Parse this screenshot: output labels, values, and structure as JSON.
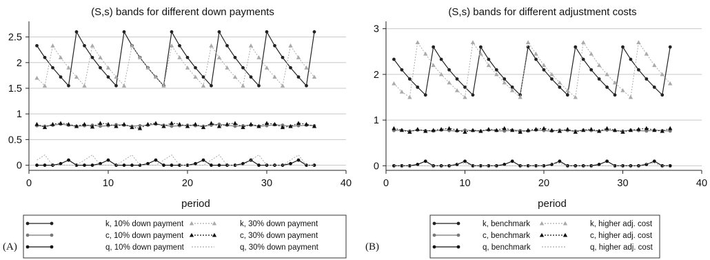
{
  "chart_data": [
    {
      "type": "line",
      "panel_label": "(A)",
      "title": "(S,s) bands for different down payments",
      "xlabel": "period",
      "ylabel": "",
      "xlim": [
        0,
        40
      ],
      "ylim": [
        -0.1,
        2.75
      ],
      "xticks": [
        0,
        10,
        20,
        30,
        40
      ],
      "yticks": [
        0,
        0.5,
        1,
        1.5,
        2,
        2.5
      ],
      "ytick_labels": [
        "0",
        "0.5",
        "1",
        "1.5",
        "2",
        "2.5"
      ],
      "grid": "horizontal",
      "legend_position": "bottom",
      "series": [
        {
          "name": "k, 10% down payment",
          "color": "#222222",
          "dash": "solid",
          "marker": "circle",
          "x": [
            1,
            2,
            3,
            4,
            5,
            6,
            7,
            8,
            9,
            10,
            11,
            12,
            13,
            14,
            15,
            16,
            17,
            18,
            19,
            20,
            21,
            22,
            23,
            24,
            25,
            26,
            27,
            28,
            29,
            30,
            31,
            32,
            33,
            34,
            35,
            36
          ],
          "y": [
            2.33,
            2.1,
            1.9,
            1.72,
            1.55,
            2.6,
            2.33,
            2.1,
            1.9,
            1.72,
            1.55,
            2.6,
            2.33,
            2.1,
            1.9,
            1.72,
            1.55,
            2.6,
            2.33,
            2.1,
            1.9,
            1.72,
            1.55,
            2.6,
            2.33,
            2.1,
            1.9,
            1.72,
            1.55,
            2.6,
            2.33,
            2.1,
            1.9,
            1.72,
            1.55,
            2.6
          ]
        },
        {
          "name": "c, 10% down payment",
          "color": "#777777",
          "dash": "solid",
          "marker": "circle",
          "x": [
            1,
            2,
            3,
            4,
            5,
            6,
            7,
            8,
            9,
            10,
            11,
            12,
            13,
            14,
            15,
            16,
            17,
            18,
            19,
            20,
            21,
            22,
            23,
            24,
            25,
            26,
            27,
            28,
            29,
            30,
            31,
            32,
            33,
            34,
            35,
            36
          ],
          "y": [
            0.77,
            0.76,
            0.78,
            0.8,
            0.78,
            0.76,
            0.77,
            0.78,
            0.76,
            0.77,
            0.79,
            0.78,
            0.76,
            0.77,
            0.78,
            0.8,
            0.78,
            0.76,
            0.77,
            0.78,
            0.77,
            0.76,
            0.78,
            0.8,
            0.78,
            0.76,
            0.77,
            0.78,
            0.76,
            0.77,
            0.79,
            0.78,
            0.76,
            0.77,
            0.78,
            0.77
          ]
        },
        {
          "name": "q, 10% down payment",
          "color": "#111111",
          "dash": "solid",
          "marker": "circle",
          "x": [
            1,
            2,
            3,
            4,
            5,
            6,
            7,
            8,
            9,
            10,
            11,
            12,
            13,
            14,
            15,
            16,
            17,
            18,
            19,
            20,
            21,
            22,
            23,
            24,
            25,
            26,
            27,
            28,
            29,
            30,
            31,
            32,
            33,
            34,
            35,
            36
          ],
          "y": [
            0,
            0,
            0,
            0.03,
            0.1,
            0,
            0,
            0,
            0.03,
            0.1,
            0,
            0,
            0,
            0,
            0.03,
            0.1,
            0,
            0,
            0,
            0,
            0.03,
            0.1,
            0,
            0,
            0,
            0,
            0.03,
            0.1,
            0,
            0,
            0,
            0,
            0.03,
            0.1,
            0,
            0
          ]
        },
        {
          "name": "k, 30% down payment",
          "color": "#aaaaaa",
          "dash": "dotted",
          "marker": "triangle",
          "x": [
            1,
            2,
            3,
            4,
            5,
            6,
            7,
            8,
            9,
            10,
            11,
            12,
            13,
            14,
            15,
            16,
            17,
            18,
            19,
            20,
            21,
            22,
            23,
            24,
            25,
            26,
            27,
            28,
            29,
            30,
            31,
            32,
            33,
            34,
            35,
            36
          ],
          "y": [
            1.7,
            1.55,
            2.33,
            2.1,
            1.9,
            1.72,
            1.55,
            2.33,
            2.1,
            1.9,
            1.72,
            1.55,
            2.33,
            2.1,
            1.9,
            1.72,
            1.55,
            2.33,
            2.1,
            1.9,
            1.72,
            1.55,
            2.33,
            2.1,
            1.9,
            1.72,
            1.55,
            2.33,
            2.1,
            1.9,
            1.72,
            1.55,
            2.33,
            2.1,
            1.9,
            1.72
          ]
        },
        {
          "name": "c, 30% down payment",
          "color": "#111111",
          "dash": "dotted",
          "marker": "triangle",
          "x": [
            1,
            2,
            3,
            4,
            5,
            6,
            7,
            8,
            9,
            10,
            11,
            12,
            13,
            14,
            15,
            16,
            17,
            18,
            19,
            20,
            21,
            22,
            23,
            24,
            25,
            26,
            27,
            28,
            29,
            30,
            31,
            32,
            33,
            34,
            35,
            36
          ],
          "y": [
            0.8,
            0.74,
            0.8,
            0.82,
            0.8,
            0.76,
            0.8,
            0.75,
            0.82,
            0.8,
            0.76,
            0.8,
            0.74,
            0.72,
            0.8,
            0.82,
            0.76,
            0.82,
            0.8,
            0.76,
            0.8,
            0.74,
            0.82,
            0.76,
            0.8,
            0.82,
            0.74,
            0.8,
            0.76,
            0.82,
            0.8,
            0.74,
            0.76,
            0.82,
            0.8,
            0.76
          ]
        },
        {
          "name": "q, 30% down payment",
          "color": "#aaaaaa",
          "dash": "dotted",
          "marker": "none",
          "x": [
            1,
            2,
            3,
            4,
            5,
            6,
            7,
            8,
            9,
            10,
            11,
            12,
            13,
            14,
            15,
            16,
            17,
            18,
            19,
            20,
            21,
            22,
            23,
            24,
            25,
            26,
            27,
            28,
            29,
            30,
            31,
            32,
            33,
            34,
            35,
            36
          ],
          "y": [
            0.1,
            0.2,
            0,
            0,
            0,
            0,
            0.1,
            0.2,
            0,
            0,
            0,
            0.1,
            0.2,
            0,
            0,
            0,
            0.1,
            0.2,
            0,
            0,
            0,
            0,
            0.1,
            0.2,
            0,
            0,
            0,
            0.1,
            0.2,
            0,
            0,
            0,
            0.1,
            0.2,
            0,
            0
          ]
        }
      ]
    },
    {
      "type": "line",
      "panel_label": "(B)",
      "title": "(S,s) bands for different adjustment costs",
      "xlabel": "period",
      "ylabel": "",
      "xlim": [
        0,
        40
      ],
      "ylim": [
        -0.1,
        3.1
      ],
      "xticks": [
        0,
        10,
        20,
        30,
        40
      ],
      "yticks": [
        0,
        1,
        2,
        3
      ],
      "ytick_labels": [
        "0",
        "1",
        "2",
        "3"
      ],
      "grid": "horizontal",
      "legend_position": "bottom",
      "series": [
        {
          "name": "k, benchmark",
          "color": "#222222",
          "dash": "solid",
          "marker": "circle",
          "x": [
            1,
            2,
            3,
            4,
            5,
            6,
            7,
            8,
            9,
            10,
            11,
            12,
            13,
            14,
            15,
            16,
            17,
            18,
            19,
            20,
            21,
            22,
            23,
            24,
            25,
            26,
            27,
            28,
            29,
            30,
            31,
            32,
            33,
            34,
            35,
            36
          ],
          "y": [
            2.33,
            2.1,
            1.9,
            1.72,
            1.55,
            2.6,
            2.33,
            2.1,
            1.9,
            1.72,
            1.55,
            2.6,
            2.33,
            2.1,
            1.9,
            1.72,
            1.55,
            2.6,
            2.33,
            2.1,
            1.9,
            1.72,
            1.55,
            2.6,
            2.33,
            2.1,
            1.9,
            1.72,
            1.55,
            2.6,
            2.33,
            2.1,
            1.9,
            1.72,
            1.55,
            2.6
          ]
        },
        {
          "name": "c, benchmark",
          "color": "#777777",
          "dash": "solid",
          "marker": "circle",
          "x": [
            1,
            2,
            3,
            4,
            5,
            6,
            7,
            8,
            9,
            10,
            11,
            12,
            13,
            14,
            15,
            16,
            17,
            18,
            19,
            20,
            21,
            22,
            23,
            24,
            25,
            26,
            27,
            28,
            29,
            30,
            31,
            32,
            33,
            34,
            35,
            36
          ],
          "y": [
            0.77,
            0.78,
            0.76,
            0.78,
            0.77,
            0.76,
            0.78,
            0.77,
            0.76,
            0.78,
            0.77,
            0.76,
            0.78,
            0.77,
            0.76,
            0.78,
            0.77,
            0.76,
            0.78,
            0.77,
            0.76,
            0.78,
            0.77,
            0.76,
            0.78,
            0.77,
            0.76,
            0.78,
            0.77,
            0.76,
            0.78,
            0.77,
            0.76,
            0.78,
            0.77,
            0.76
          ]
        },
        {
          "name": "q, benchmark",
          "color": "#111111",
          "dash": "solid",
          "marker": "circle",
          "x": [
            1,
            2,
            3,
            4,
            5,
            6,
            7,
            8,
            9,
            10,
            11,
            12,
            13,
            14,
            15,
            16,
            17,
            18,
            19,
            20,
            21,
            22,
            23,
            24,
            25,
            26,
            27,
            28,
            29,
            30,
            31,
            32,
            33,
            34,
            35,
            36
          ],
          "y": [
            0,
            0,
            0,
            0.03,
            0.1,
            0,
            0,
            0,
            0.03,
            0.1,
            0,
            0,
            0,
            0,
            0.03,
            0.1,
            0,
            0,
            0,
            0,
            0.03,
            0.1,
            0,
            0,
            0,
            0,
            0.03,
            0.1,
            0,
            0,
            0,
            0,
            0.03,
            0.1,
            0,
            0
          ]
        },
        {
          "name": "k, higher adj. cost",
          "color": "#aaaaaa",
          "dash": "dotted",
          "marker": "triangle",
          "x": [
            1,
            2,
            3,
            4,
            5,
            6,
            7,
            8,
            9,
            10,
            11,
            12,
            13,
            14,
            15,
            16,
            17,
            18,
            19,
            20,
            21,
            22,
            23,
            24,
            25,
            26,
            27,
            28,
            29,
            30,
            31,
            32,
            33,
            34,
            35,
            36
          ],
          "y": [
            1.8,
            1.62,
            1.5,
            2.7,
            2.45,
            2.2,
            2.0,
            1.82,
            1.65,
            1.5,
            2.7,
            2.45,
            2.2,
            2.0,
            1.82,
            1.65,
            1.5,
            2.7,
            2.45,
            2.2,
            2.0,
            1.82,
            1.65,
            1.5,
            2.7,
            2.45,
            2.2,
            2.0,
            1.82,
            1.65,
            1.5,
            2.7,
            2.45,
            2.2,
            2.0,
            1.8
          ]
        },
        {
          "name": "c, higher adj. cost",
          "color": "#111111",
          "dash": "dotted",
          "marker": "triangle",
          "x": [
            1,
            2,
            3,
            4,
            5,
            6,
            7,
            8,
            9,
            10,
            11,
            12,
            13,
            14,
            15,
            16,
            17,
            18,
            19,
            20,
            21,
            22,
            23,
            24,
            25,
            26,
            27,
            28,
            29,
            30,
            31,
            32,
            33,
            34,
            35,
            36
          ],
          "y": [
            0.82,
            0.78,
            0.74,
            0.8,
            0.76,
            0.78,
            0.8,
            0.82,
            0.78,
            0.74,
            0.78,
            0.76,
            0.8,
            0.78,
            0.82,
            0.78,
            0.74,
            0.78,
            0.8,
            0.82,
            0.78,
            0.76,
            0.8,
            0.74,
            0.78,
            0.8,
            0.76,
            0.82,
            0.78,
            0.74,
            0.78,
            0.8,
            0.82,
            0.78,
            0.76,
            0.82
          ]
        },
        {
          "name": "q,  higher adj. cost",
          "color": "#aaaaaa",
          "dash": "dotted",
          "marker": "none",
          "x": [
            1,
            2,
            3,
            4,
            5,
            6,
            7,
            8,
            9,
            10,
            11,
            12,
            13,
            14,
            15,
            16,
            17,
            18,
            19,
            20,
            21,
            22,
            23,
            24,
            25,
            26,
            27,
            28,
            29,
            30,
            31,
            32,
            33,
            34,
            35,
            36
          ],
          "y": [
            0,
            0,
            0,
            0,
            0,
            0,
            0,
            0,
            0.05,
            0.05,
            0,
            0,
            0,
            0,
            0,
            0,
            0,
            0,
            0,
            0,
            0.05,
            0.05,
            0,
            0,
            0,
            0,
            0,
            0,
            0,
            0,
            0,
            0,
            0.05,
            0.05,
            0,
            0
          ]
        }
      ]
    }
  ]
}
